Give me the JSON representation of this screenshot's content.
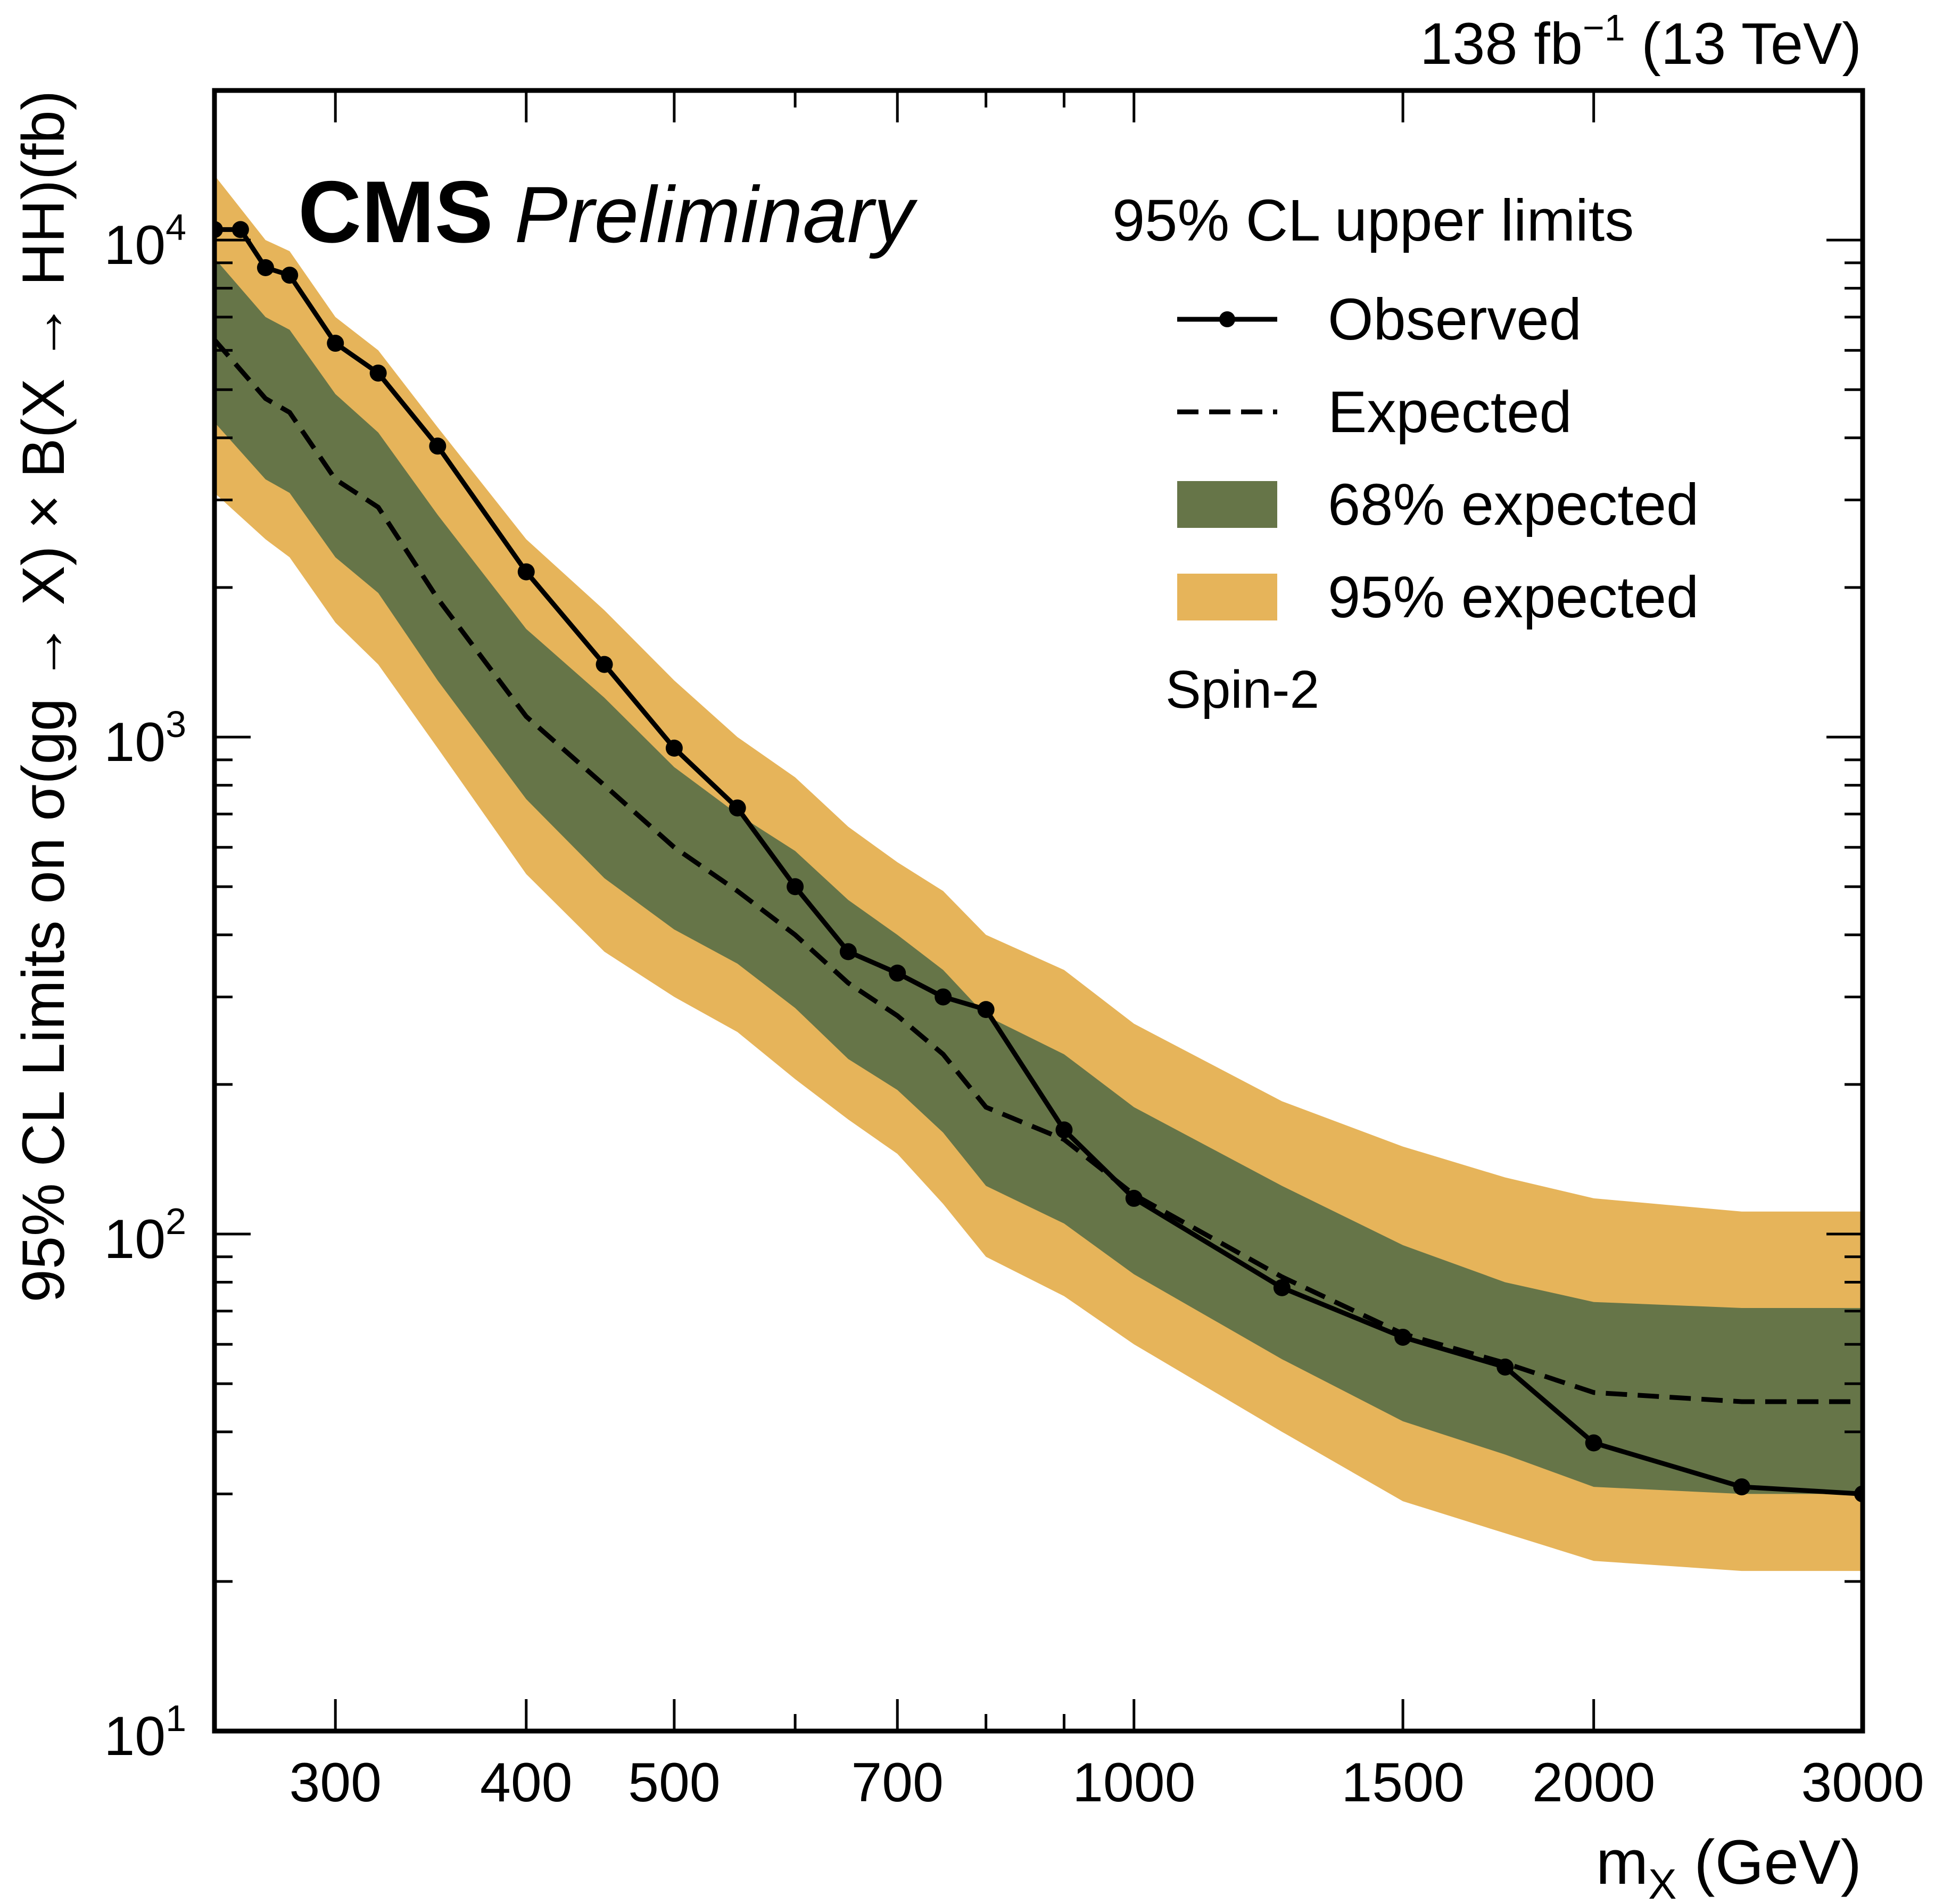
{
  "chart_data": {
    "type": "line",
    "title": "CMS",
    "subtitle": "Preliminary",
    "lumi_label": {
      "main": "138 fb",
      "sup": "−1",
      "tail": " (13 TeV)"
    },
    "xlabel": {
      "main": "m",
      "sub": "X",
      "tail": " (GeV)"
    },
    "ylabel": "95% CL Limits on σ(gg → X) × B(X → HH)(fb)",
    "xscale": "log",
    "yscale": "log",
    "xlim": [
      250,
      3000
    ],
    "ylim": [
      10,
      20000
    ],
    "x_ticks": [
      300,
      400,
      500,
      700,
      1000,
      1500,
      2000,
      3000
    ],
    "x_tick_labels": [
      "300",
      "400",
      "500",
      "700",
      "1000",
      "1500",
      "2000",
      "3000"
    ],
    "y_ticks": [
      {
        "value": 10,
        "base": "10",
        "exp": "1"
      },
      {
        "value": 100,
        "base": "10",
        "exp": "2"
      },
      {
        "value": 1000,
        "base": "10",
        "exp": "3"
      },
      {
        "value": 10000,
        "base": "10",
        "exp": "4"
      }
    ],
    "legend": {
      "title": "95% CL upper limits",
      "position": "top-right",
      "entries": [
        {
          "label": "Observed",
          "style": "line-marker"
        },
        {
          "label": "Expected",
          "style": "dashed"
        },
        {
          "label": "68% expected",
          "style": "band",
          "color": "#667548"
        },
        {
          "label": "95% expected",
          "style": "band",
          "color": "#e6b45a"
        }
      ]
    },
    "annotation": "Spin-2",
    "colors": {
      "band68": "#667548",
      "band95": "#e6b45a",
      "line": "#000000"
    },
    "series": [
      {
        "name": "Observed",
        "x": [
          250,
          260,
          270,
          280,
          300,
          320,
          350,
          400,
          450,
          500,
          550,
          600,
          650,
          700,
          750,
          800,
          900,
          1000,
          1250,
          1500,
          1750,
          2000,
          2500,
          3000
        ],
        "values": [
          10500,
          10500,
          8800,
          8500,
          6200,
          5400,
          3850,
          2150,
          1400,
          950,
          720,
          500,
          370,
          335,
          300,
          283,
          162,
          118,
          78,
          62,
          54,
          38,
          31,
          30
        ]
      },
      {
        "name": "Expected",
        "x": [
          250,
          270,
          280,
          300,
          320,
          350,
          400,
          450,
          500,
          550,
          600,
          650,
          700,
          750,
          800,
          900,
          1000,
          1250,
          1500,
          1750,
          2000,
          2500,
          3000
        ],
        "values": [
          6300,
          4800,
          4500,
          3300,
          2900,
          1900,
          1100,
          800,
          600,
          490,
          400,
          320,
          275,
          230,
          180,
          155,
          120,
          82,
          63,
          55,
          48,
          46,
          46
        ]
      },
      {
        "name": "68% expected",
        "x": [
          250,
          270,
          280,
          300,
          320,
          350,
          400,
          450,
          500,
          550,
          600,
          650,
          700,
          750,
          800,
          900,
          1000,
          1250,
          1500,
          1750,
          2000,
          2500,
          3000
        ],
        "low": [
          4300,
          3300,
          3100,
          2300,
          1950,
          1300,
          750,
          520,
          410,
          350,
          285,
          225,
          195,
          160,
          125,
          105,
          83,
          56,
          42,
          36,
          31,
          30,
          30
        ],
        "high": [
          9200,
          7000,
          6600,
          4900,
          4100,
          2800,
          1650,
          1200,
          870,
          700,
          590,
          470,
          400,
          340,
          275,
          230,
          180,
          125,
          95,
          80,
          73,
          71,
          71
        ]
      },
      {
        "name": "95% expected",
        "x": [
          250,
          270,
          280,
          300,
          320,
          350,
          400,
          450,
          500,
          550,
          600,
          650,
          700,
          750,
          800,
          900,
          1000,
          1250,
          1500,
          1750,
          2000,
          2500,
          3000
        ],
        "low": [
          3100,
          2500,
          2300,
          1700,
          1400,
          950,
          530,
          370,
          300,
          255,
          205,
          170,
          145,
          115,
          90,
          75,
          60,
          40,
          29,
          25,
          22,
          21,
          21
        ],
        "high": [
          13500,
          10000,
          9500,
          7000,
          6000,
          4200,
          2500,
          1800,
          1300,
          1000,
          830,
          660,
          560,
          490,
          400,
          340,
          265,
          185,
          150,
          130,
          118,
          111,
          111
        ]
      }
    ]
  }
}
